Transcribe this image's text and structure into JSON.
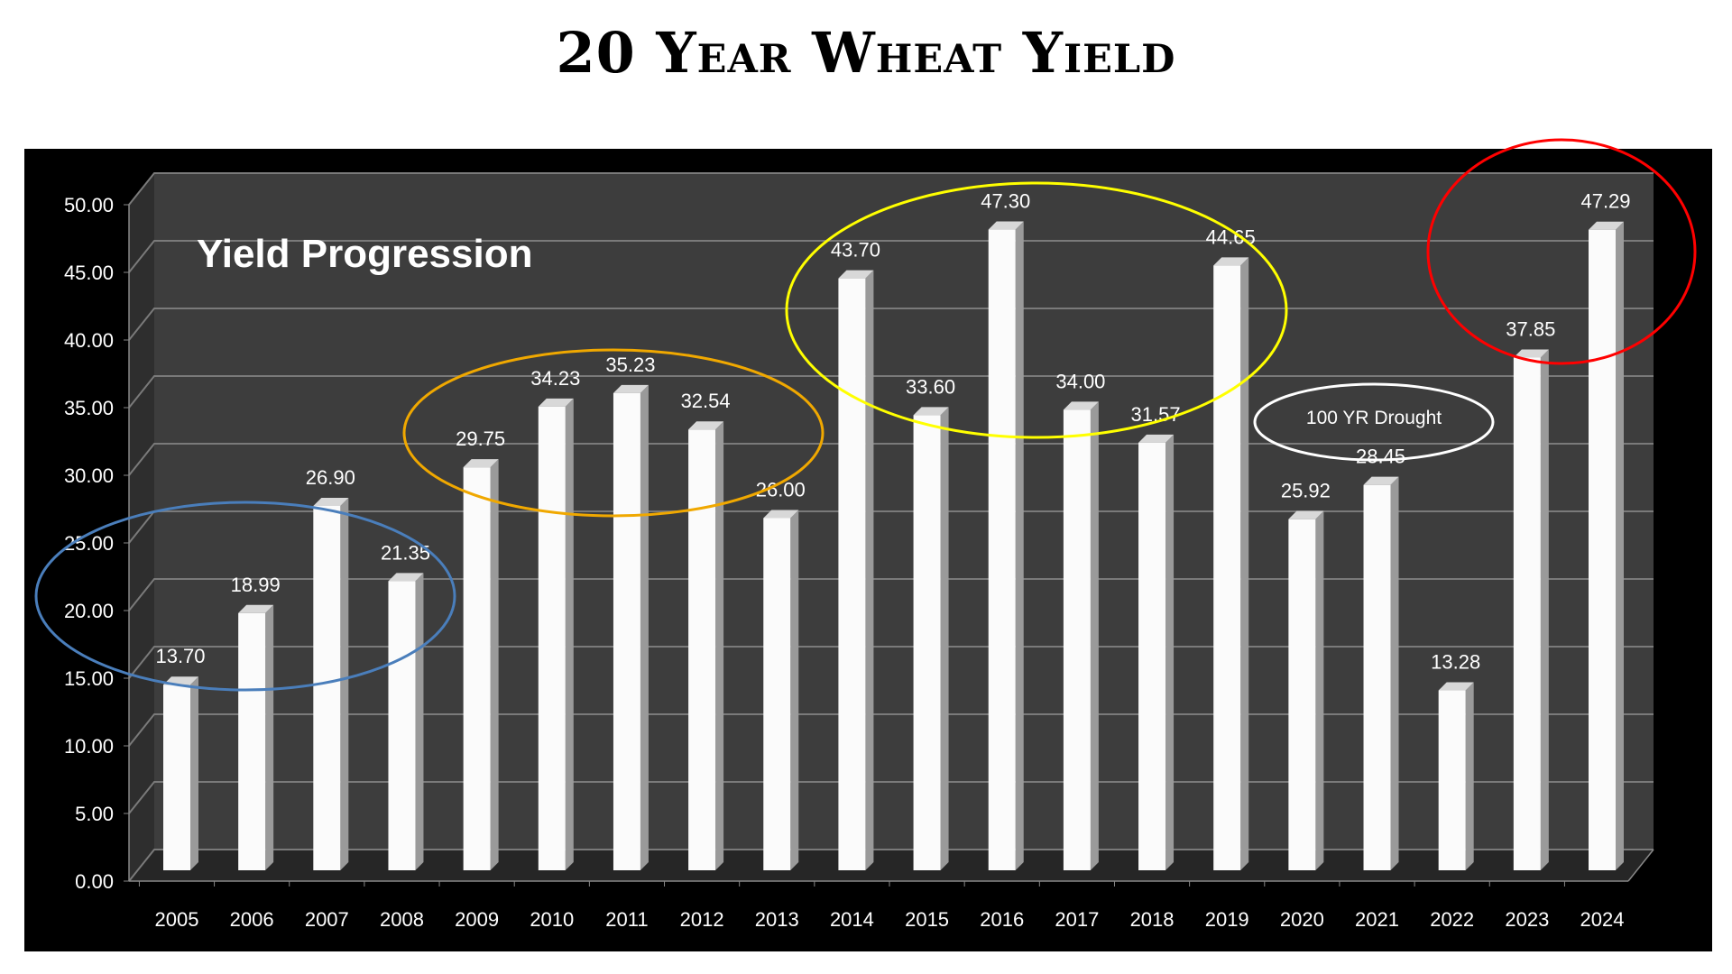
{
  "chart_data": {
    "type": "bar",
    "title": "20 Year Wheat Yield",
    "subtitle": "Yield Progression",
    "categories": [
      "2005",
      "2006",
      "2007",
      "2008",
      "2009",
      "2010",
      "2011",
      "2012",
      "2013",
      "2014",
      "2015",
      "2016",
      "2017",
      "2018",
      "2019",
      "2020",
      "2021",
      "2022",
      "2023",
      "2024"
    ],
    "values": [
      13.7,
      18.99,
      26.9,
      21.35,
      29.75,
      34.23,
      35.23,
      32.54,
      26.0,
      43.7,
      33.6,
      47.3,
      34.0,
      31.57,
      44.65,
      25.92,
      28.45,
      13.28,
      37.85,
      47.29
    ],
    "value_labels": [
      "13.70",
      "18.99",
      "26.90",
      "21.35",
      "29.75",
      "34.23",
      "35.23",
      "32.54",
      "26.00",
      "43.70",
      "33.60",
      "47.30",
      "34.00",
      "31.57",
      "44.65",
      "25.92",
      "28.45",
      "13.28",
      "37.85",
      "47.29"
    ],
    "yticks": [
      "0.00",
      "5.00",
      "10.00",
      "15.00",
      "20.00",
      "25.00",
      "30.00",
      "35.00",
      "40.00",
      "45.00",
      "50.00"
    ],
    "ylim": [
      0,
      50
    ],
    "xlabel": "",
    "ylabel": "",
    "grid": true,
    "annotations": [
      {
        "type": "ellipse",
        "color": "#4a7ebb",
        "categories": [
          "2005",
          "2008"
        ]
      },
      {
        "type": "ellipse",
        "color": "#f0a800",
        "categories": [
          "2009",
          "2012"
        ]
      },
      {
        "type": "ellipse",
        "color": "#ffff00",
        "categories": [
          "2014",
          "2019"
        ]
      },
      {
        "type": "ellipse",
        "color": "#ff0000",
        "categories": [
          "2023",
          "2024"
        ]
      },
      {
        "type": "ellipse",
        "color": "#ffffff",
        "text": "100 YR Drought",
        "categories": [
          "2021"
        ]
      }
    ]
  }
}
